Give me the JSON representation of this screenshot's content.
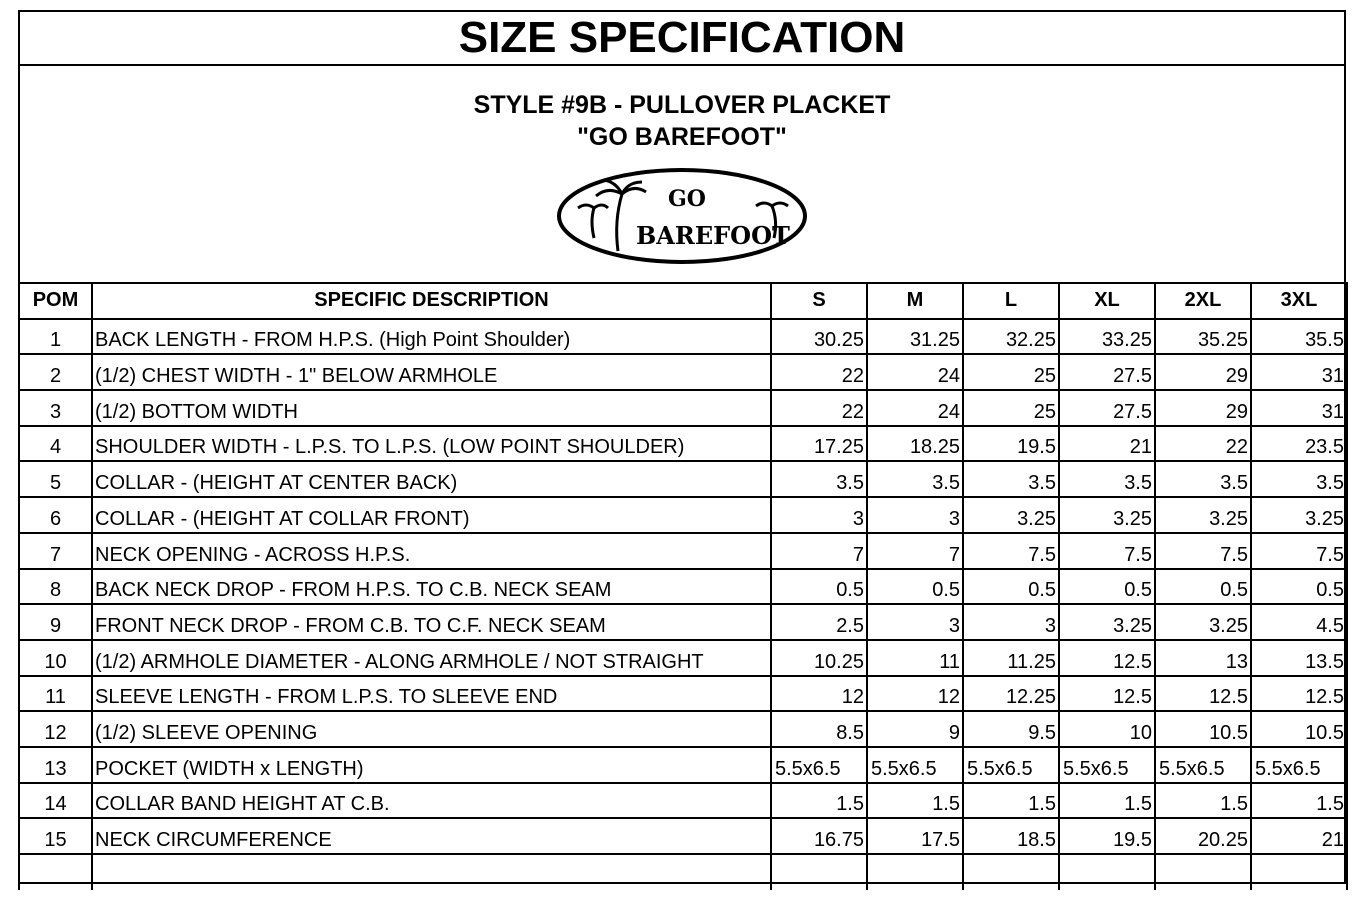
{
  "title": "SIZE SPECIFICATION",
  "style_line": "STYLE #9B - PULLOVER PLACKET",
  "name_line": "\"GO BAREFOOT\"",
  "logo": {
    "text_top": "GO",
    "text_bottom": "BAREFOOT"
  },
  "columns": [
    "POM",
    "SPECIFIC DESCRIPTION",
    "S",
    "M",
    "L",
    "XL",
    "2XL",
    "3XL"
  ],
  "rows": [
    {
      "pom": "1",
      "desc": "BACK LENGTH - FROM H.P.S. (High Point Shoulder)",
      "values": [
        "30.25",
        "31.25",
        "32.25",
        "33.25",
        "35.25",
        "35.5"
      ]
    },
    {
      "pom": "2",
      "desc": "(1/2) CHEST WIDTH - 1\" BELOW ARMHOLE",
      "values": [
        "22",
        "24",
        "25",
        "27.5",
        "29",
        "31"
      ]
    },
    {
      "pom": "3",
      "desc": "(1/2) BOTTOM WIDTH",
      "values": [
        "22",
        "24",
        "25",
        "27.5",
        "29",
        "31"
      ]
    },
    {
      "pom": "4",
      "desc": "SHOULDER WIDTH - L.P.S. TO L.P.S. (LOW POINT SHOULDER)",
      "values": [
        "17.25",
        "18.25",
        "19.5",
        "21",
        "22",
        "23.5"
      ]
    },
    {
      "pom": "5",
      "desc": "COLLAR - (HEIGHT AT CENTER BACK)",
      "values": [
        "3.5",
        "3.5",
        "3.5",
        "3.5",
        "3.5",
        "3.5"
      ]
    },
    {
      "pom": "6",
      "desc": "COLLAR - (HEIGHT AT COLLAR FRONT)",
      "values": [
        "3",
        "3",
        "3.25",
        "3.25",
        "3.25",
        "3.25"
      ]
    },
    {
      "pom": "7",
      "desc": "NECK OPENING - ACROSS H.P.S.",
      "values": [
        "7",
        "7",
        "7.5",
        "7.5",
        "7.5",
        "7.5"
      ]
    },
    {
      "pom": "8",
      "desc": "BACK NECK DROP - FROM H.P.S. TO C.B. NECK SEAM",
      "values": [
        "0.5",
        "0.5",
        "0.5",
        "0.5",
        "0.5",
        "0.5"
      ]
    },
    {
      "pom": "9",
      "desc": "FRONT NECK DROP - FROM C.B. TO C.F. NECK SEAM",
      "values": [
        "2.5",
        "3",
        "3",
        "3.25",
        "3.25",
        "4.5"
      ]
    },
    {
      "pom": "10",
      "desc": "(1/2) ARMHOLE DIAMETER - ALONG ARMHOLE / NOT STRAIGHT",
      "values": [
        "10.25",
        "11",
        "11.25",
        "12.5",
        "13",
        "13.5"
      ]
    },
    {
      "pom": "11",
      "desc": "SLEEVE LENGTH - FROM L.P.S. TO SLEEVE END",
      "values": [
        "12",
        "12",
        "12.25",
        "12.5",
        "12.5",
        "12.5"
      ]
    },
    {
      "pom": "12",
      "desc": "(1/2) SLEEVE OPENING",
      "values": [
        "8.5",
        "9",
        "9.5",
        "10",
        "10.5",
        "10.5"
      ]
    },
    {
      "pom": "13",
      "desc": "POCKET (WIDTH x LENGTH)",
      "values": [
        "5.5x6.5",
        "5.5x6.5",
        "5.5x6.5",
        "5.5x6.5",
        "5.5x6.5",
        "5.5x6.5"
      ]
    },
    {
      "pom": "14",
      "desc": "COLLAR BAND HEIGHT AT C.B.",
      "values": [
        "1.5",
        "1.5",
        "1.5",
        "1.5",
        "1.5",
        "1.5"
      ]
    },
    {
      "pom": "15",
      "desc": "NECK CIRCUMFERENCE",
      "values": [
        "16.75",
        "17.5",
        "18.5",
        "19.5",
        "20.25",
        "21"
      ]
    },
    {
      "pom": "",
      "desc": "",
      "values": [
        "",
        "",
        "",
        "",
        "",
        ""
      ]
    }
  ]
}
